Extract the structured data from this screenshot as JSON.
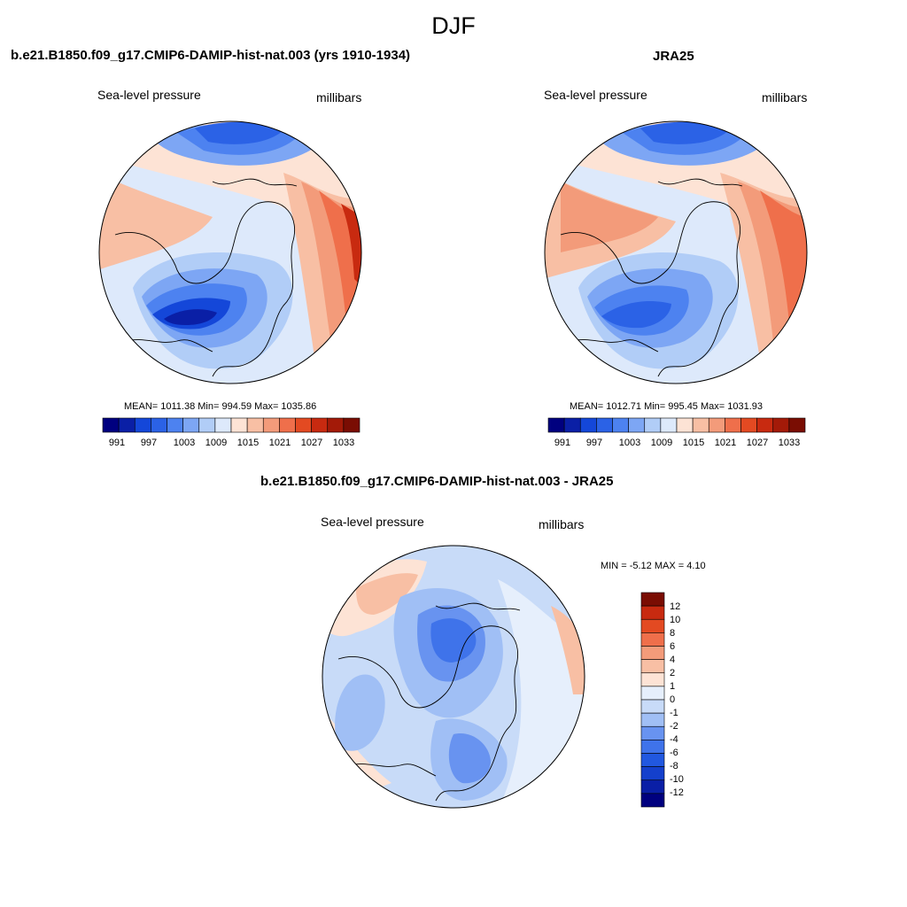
{
  "page": {
    "season_title": "DJF"
  },
  "panels": [
    {
      "title": "b.e21.B1850.f09_g17.CMIP6-DAMIP-hist-nat.003 (yrs 1910-1934)",
      "variable_label": "Sea-level pressure",
      "units_label": "millibars",
      "stats": "MEAN= 1011.38  Min= 994.59  Max= 1035.86",
      "colorbar_ticks": [
        "991",
        "997",
        "1003",
        "1009",
        "1015",
        "1021",
        "1027",
        "1033"
      ]
    },
    {
      "title": "JRA25",
      "variable_label": "Sea-level pressure",
      "units_label": "millibars",
      "stats": "MEAN= 1012.71  Min= 995.45  Max= 1031.93",
      "colorbar_ticks": [
        "991",
        "997",
        "1003",
        "1009",
        "1015",
        "1021",
        "1027",
        "1033"
      ]
    },
    {
      "title": "b.e21.B1850.f09_g17.CMIP6-DAMIP-hist-nat.003 - JRA25",
      "variable_label": "Sea-level pressure",
      "units_label": "millibars",
      "stats": "MIN =  -5.12 MAX =   4.10",
      "colorbar_ticks": [
        "12",
        "10",
        "8",
        "6",
        "4",
        "2",
        "1",
        "0",
        "-1",
        "-2",
        "-4",
        "-6",
        "-8",
        "-10",
        "-12"
      ]
    }
  ],
  "colors": {
    "abs_scale": [
      "#00007f",
      "#0a1fa6",
      "#1447d9",
      "#2b62e6",
      "#4d82f0",
      "#7da6f4",
      "#b1cdf7",
      "#dde9fb",
      "#fde3d5",
      "#f8bfa4",
      "#f39b7a",
      "#ef6f4b",
      "#e34a22",
      "#c82a10",
      "#a31a08",
      "#7a0d03"
    ],
    "diff_scale": [
      "#00007f",
      "#0a1fa6",
      "#1440cc",
      "#2158e0",
      "#3f73ea",
      "#6893f0",
      "#a0bff5",
      "#c8dbf8",
      "#e6effc",
      "#fde3d5",
      "#f8bfa4",
      "#f39b7a",
      "#ef6f4b",
      "#e34a22",
      "#c82a10",
      "#7a0d03"
    ]
  }
}
